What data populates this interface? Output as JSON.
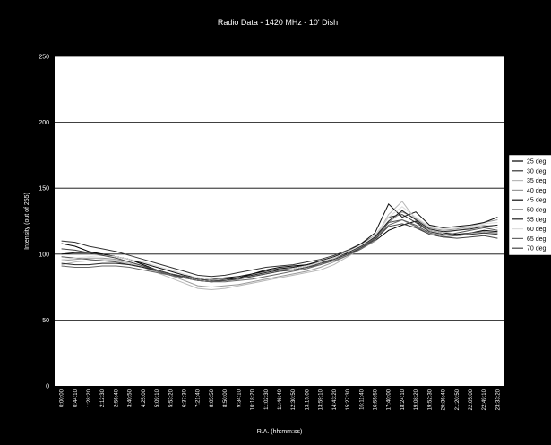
{
  "chart_data": {
    "type": "line",
    "title": "Radio Data - 1420 MHz - 10' Dish",
    "xlabel": "R.A. (hh:mm:ss)",
    "ylabel": "Intensity (out of 255)",
    "ylim": [
      0,
      250
    ],
    "yticks": [
      "0",
      "50",
      "100",
      "150",
      "200",
      "250"
    ],
    "grid": "horizontal",
    "legend_position": "right",
    "x_tick_labels": [
      "0:00:00",
      "0:44:10",
      "1:28:20",
      "2:12:30",
      "2:56:40",
      "3:40:50",
      "4:25:00",
      "5:09:10",
      "5:53:20",
      "6:37:30",
      "7:21:40",
      "8:05:50",
      "8:50:00",
      "9:34:10",
      "10:18:20",
      "11:02:30",
      "11:46:40",
      "12:30:50",
      "13:15:00",
      "13:59:10",
      "14:43:20",
      "15:27:30",
      "16:11:40",
      "16:55:50",
      "17:40:00",
      "18:24:10",
      "19:08:20",
      "19:52:30",
      "20:36:40",
      "21:20:50",
      "22:05:00",
      "22:49:10",
      "23:33:20"
    ],
    "series": [
      {
        "name": "25 deg",
        "color": "#000000",
        "values": [
          108,
          106,
          102,
          100,
          98,
          96,
          92,
          88,
          85,
          82,
          80,
          79,
          80,
          82,
          85,
          88,
          90,
          91,
          92,
          94,
          96,
          100,
          104,
          110,
          118,
          122,
          125,
          118,
          116,
          115,
          116,
          118,
          117
        ]
      },
      {
        "name": "30 deg",
        "color": "#333333",
        "values": [
          110,
          109,
          106,
          104,
          102,
          99,
          96,
          93,
          90,
          87,
          84,
          83,
          84,
          86,
          88,
          90,
          91,
          92,
          94,
          96,
          99,
          103,
          108,
          114,
          128,
          130,
          124,
          117,
          115,
          114,
          115,
          116,
          115
        ]
      },
      {
        "name": "35 deg",
        "color": "#b8b8b8",
        "values": [
          92,
          94,
          95,
          96,
          95,
          93,
          90,
          86,
          82,
          78,
          74,
          73,
          74,
          76,
          78,
          80,
          82,
          84,
          86,
          88,
          92,
          98,
          104,
          112,
          130,
          140,
          126,
          118,
          116,
          118,
          120,
          122,
          120
        ]
      },
      {
        "name": "40 deg",
        "color": "#999999",
        "values": [
          95,
          96,
          97,
          97,
          96,
          94,
          91,
          88,
          84,
          80,
          76,
          75,
          76,
          77,
          79,
          81,
          83,
          85,
          87,
          90,
          94,
          99,
          104,
          110,
          124,
          132,
          127,
          120,
          118,
          119,
          121,
          124,
          126
        ]
      },
      {
        "name": "45 deg",
        "color": "#111111",
        "values": [
          100,
          101,
          101,
          100,
          98,
          96,
          93,
          90,
          87,
          84,
          82,
          81,
          82,
          83,
          85,
          87,
          89,
          90,
          92,
          95,
          98,
          102,
          108,
          116,
          138,
          128,
          132,
          122,
          120,
          121,
          122,
          124,
          128
        ]
      },
      {
        "name": "50 deg",
        "color": "#555555",
        "values": [
          98,
          97,
          96,
          95,
          94,
          92,
          90,
          87,
          84,
          82,
          80,
          79,
          80,
          81,
          83,
          85,
          87,
          88,
          90,
          92,
          96,
          100,
          105,
          112,
          124,
          126,
          122,
          116,
          114,
          116,
          118,
          120,
          118
        ]
      },
      {
        "name": "55 deg",
        "color": "#222222",
        "values": [
          93,
          92,
          92,
          93,
          93,
          92,
          90,
          88,
          85,
          83,
          81,
          80,
          81,
          82,
          84,
          86,
          88,
          89,
          91,
          94,
          97,
          101,
          106,
          113,
          125,
          133,
          126,
          119,
          117,
          118,
          119,
          121,
          122
        ]
      },
      {
        "name": "60 deg",
        "color": "#dddddd",
        "values": [
          96,
          97,
          98,
          99,
          98,
          96,
          94,
          91,
          88,
          85,
          82,
          81,
          80,
          81,
          83,
          85,
          87,
          89,
          91,
          94,
          97,
          102,
          107,
          114,
          128,
          136,
          128,
          121,
          119,
          120,
          121,
          123,
          124
        ]
      },
      {
        "name": "65 deg",
        "color": "#666666",
        "values": [
          91,
          90,
          90,
          91,
          91,
          90,
          88,
          86,
          84,
          82,
          80,
          79,
          79,
          80,
          81,
          83,
          85,
          87,
          89,
          92,
          95,
          99,
          104,
          111,
          122,
          126,
          121,
          115,
          113,
          114,
          116,
          117,
          116
        ]
      },
      {
        "name": "70 deg",
        "color": "#444444",
        "values": [
          104,
          103,
          101,
          99,
          97,
          94,
          91,
          88,
          85,
          83,
          81,
          80,
          80,
          81,
          83,
          85,
          87,
          88,
          90,
          93,
          96,
          100,
          105,
          111,
          121,
          123,
          120,
          115,
          113,
          112,
          113,
          114,
          112
        ]
      }
    ]
  }
}
